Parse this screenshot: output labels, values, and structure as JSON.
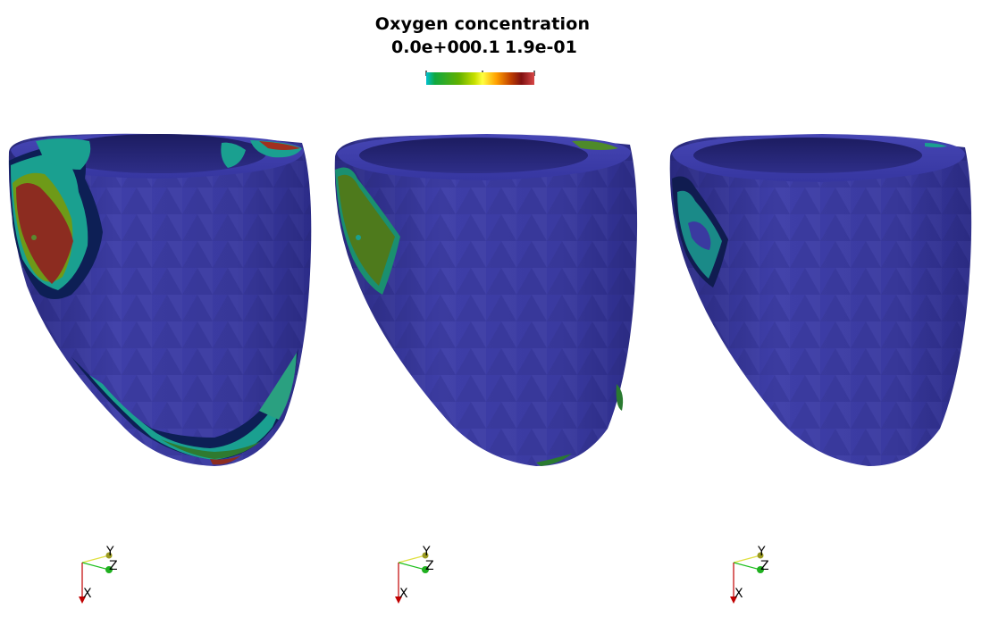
{
  "legend": {
    "title": "Oxygen concentration",
    "tick_min": "0.0e+00",
    "tick_mid": "0.1",
    "tick_max": "1.9e-01",
    "colormap": [
      "#00c0d0",
      "#10a840",
      "#60b000",
      "#c8e000",
      "#ffff40",
      "#ffa000",
      "#c04000",
      "#801010",
      "#d84848"
    ]
  },
  "views": [
    {
      "name": "heart-view-1",
      "surface_color": "#3b3ba0"
    },
    {
      "name": "heart-view-2",
      "surface_color": "#3b3ba0"
    },
    {
      "name": "heart-view-3",
      "surface_color": "#3b3ba0"
    }
  ],
  "axes": {
    "x_label": "X",
    "y_label": "Y",
    "z_label": "Z",
    "x_color": "#c00000",
    "y_color": "#e0e040",
    "z_color": "#20c020"
  }
}
